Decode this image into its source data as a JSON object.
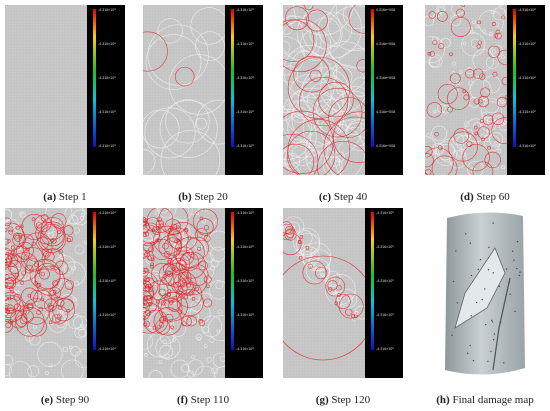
{
  "panels": [
    {
      "tag": "(a)",
      "caption": "Step 1",
      "colorbar": [
        "-4.316×10⁸",
        "-4.316×10⁸",
        "-4.316×10⁸",
        "-4.316×10⁸",
        "-4.316×10⁸"
      ]
    },
    {
      "tag": "(b)",
      "caption": "Step 20",
      "colorbar": [
        "-4.316×10⁸",
        "-4.316×10⁸",
        "-4.316×10⁸",
        "-4.316×10⁸",
        "-4.316×10⁸"
      ]
    },
    {
      "tag": "(c)",
      "caption": "Step 40",
      "colorbar": [
        "4.316e+008",
        "4.316e+008",
        "4.316e+008",
        "4.316e+008",
        "4.316e+008"
      ]
    },
    {
      "tag": "(d)",
      "caption": "Step 60",
      "colorbar": [
        "-4.316×10⁸",
        "-4.316×10⁸",
        "-4.316×10⁸",
        "-4.316×10⁸",
        "-4.316×10⁸"
      ]
    },
    {
      "tag": "(e)",
      "caption": "Step 90",
      "colorbar": [
        "-4.316×10⁸",
        "-4.316×10⁸",
        "-4.316×10⁸",
        "-4.316×10⁸",
        "-4.316×10⁸"
      ]
    },
    {
      "tag": "(f)",
      "caption": "Step 110",
      "colorbar": [
        "-4.316×10⁸",
        "-4.316×10⁸",
        "-4.316×10⁸",
        "-4.316×10⁸",
        "-4.316×10⁸"
      ]
    },
    {
      "tag": "(g)",
      "caption": "Step 120",
      "colorbar": [
        "-4.316×10⁸",
        "-4.316×10⁸",
        "-4.316×10⁸",
        "-4.316×10⁸",
        "-4.316×10⁸"
      ]
    },
    {
      "tag": "(h)",
      "caption": "Final damage map"
    }
  ]
}
